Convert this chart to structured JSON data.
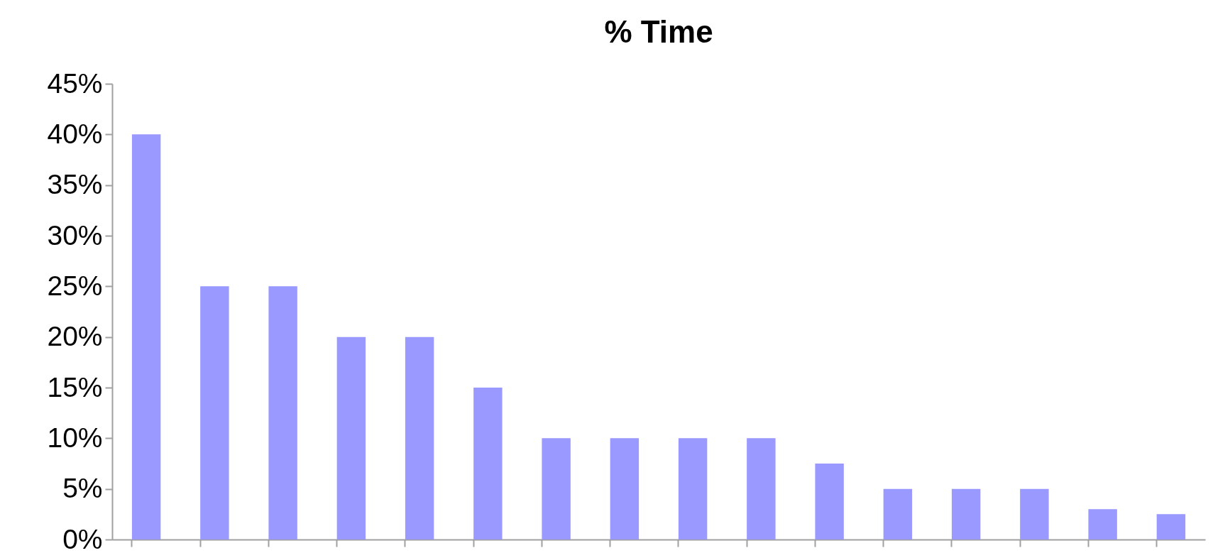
{
  "chart_data": {
    "type": "bar",
    "title": "% Time",
    "categories": [
      null,
      null,
      null,
      null,
      null,
      null,
      null,
      null,
      null,
      null,
      null,
      null,
      null,
      null,
      null,
      null
    ],
    "values": [
      40,
      25,
      25,
      20,
      20,
      15,
      10,
      10,
      10,
      10,
      7.5,
      5,
      5,
      5,
      3,
      2.5
    ],
    "color": "#9999ff",
    "ylim": [
      0,
      45
    ],
    "yticks": [
      {
        "value": 0,
        "label": "0%"
      },
      {
        "value": 5,
        "label": "5%"
      },
      {
        "value": 10,
        "label": "10%"
      },
      {
        "value": 15,
        "label": "15%"
      },
      {
        "value": 20,
        "label": "20%"
      },
      {
        "value": 25,
        "label": "25%"
      },
      {
        "value": 30,
        "label": "30%"
      },
      {
        "value": 35,
        "label": "35%"
      },
      {
        "value": 40,
        "label": "40%"
      },
      {
        "value": 45,
        "label": "45%"
      }
    ],
    "grid": false,
    "tick_labels": "y"
  }
}
